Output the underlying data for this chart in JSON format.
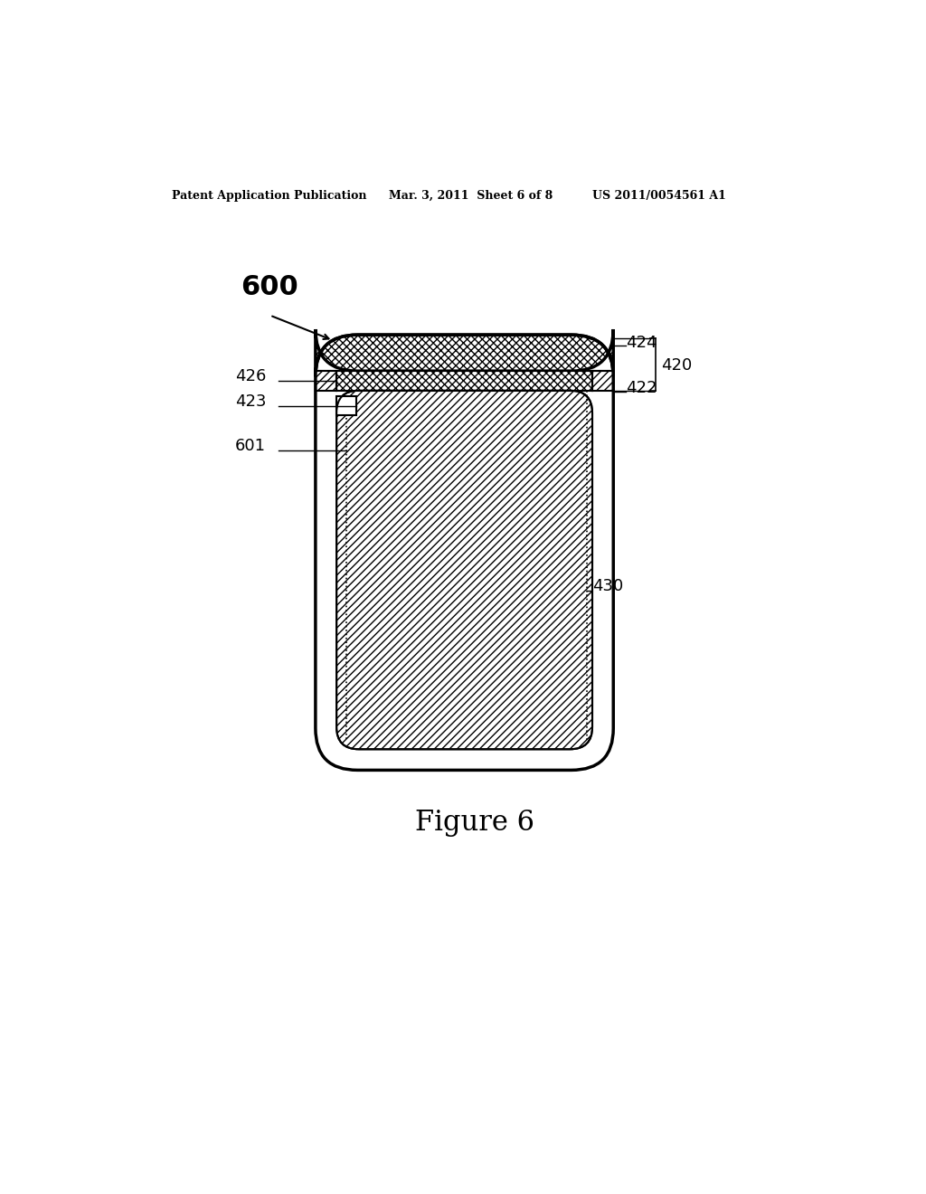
{
  "title_left": "Patent Application Publication",
  "title_mid": "Mar. 3, 2011  Sheet 6 of 8",
  "title_right": "US 2011/0054561 A1",
  "figure_label": "Figure 6",
  "ref_600": "600",
  "ref_424": "424",
  "ref_420": "420",
  "ref_422": "422",
  "ref_426": "426",
  "ref_423": "423",
  "ref_601": "601",
  "ref_430": "430",
  "bg_color": "#ffffff",
  "line_color": "#000000"
}
